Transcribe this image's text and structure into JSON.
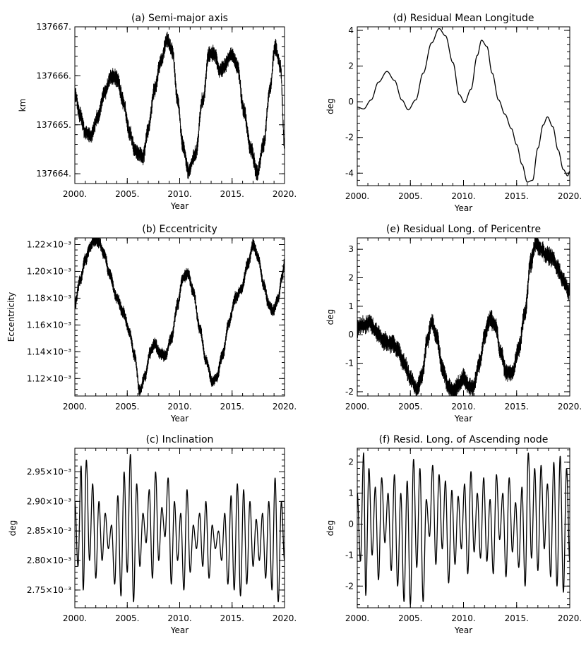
{
  "chart_data": [
    {
      "id": "a",
      "type": "line",
      "title": "(a) Semi-major axis",
      "xlabel": "Year",
      "ylabel": "km",
      "xlim": [
        2000,
        2020
      ],
      "ylim": [
        137663.8,
        137667.0
      ],
      "xticks": [
        2000,
        2005,
        2010,
        2015,
        2020
      ],
      "xtick_labels": [
        "2000.",
        "2005.",
        "2010.",
        "2015.",
        "2020."
      ],
      "yticks": [
        137664,
        137665,
        137666,
        137667
      ],
      "ytick_labels": [
        "137664.",
        "137665.",
        "137666.",
        "137667."
      ],
      "band": 0.14,
      "jitter": 0.05,
      "x": [
        2000.0,
        2000.5,
        2001.0,
        2001.5,
        2002.2,
        2002.8,
        2003.5,
        2004.0,
        2004.6,
        2005.2,
        2005.8,
        2006.5,
        2007.0,
        2007.6,
        2008.2,
        2008.8,
        2009.3,
        2009.8,
        2010.3,
        2010.8,
        2011.5,
        2012.2,
        2012.8,
        2013.3,
        2013.8,
        2014.3,
        2014.9,
        2015.5,
        2016.1,
        2016.8,
        2017.4,
        2018.0,
        2018.6,
        2019.1,
        2019.6,
        2020.0
      ],
      "y": [
        137665.65,
        137665.2,
        137664.85,
        137664.78,
        137665.15,
        137665.65,
        137666.0,
        137665.95,
        137665.5,
        137664.85,
        137664.45,
        137664.35,
        137664.9,
        137665.7,
        137666.3,
        137666.75,
        137666.5,
        137665.5,
        137664.6,
        137664.05,
        137664.4,
        137665.5,
        137666.45,
        137666.45,
        137666.1,
        137666.2,
        137666.45,
        137666.2,
        137665.3,
        137664.5,
        137664.0,
        137664.6,
        137665.7,
        137666.6,
        137666.2,
        137664.6
      ]
    },
    {
      "id": "d",
      "type": "line",
      "title": "(d) Residual Mean Longitude",
      "xlabel": "Year",
      "ylabel": "deg",
      "xlim": [
        2000,
        2020
      ],
      "ylim": [
        -4.7,
        4.2
      ],
      "xticks": [
        2000,
        2005,
        2010,
        2015,
        2020
      ],
      "xtick_labels": [
        "2000.",
        "2005.",
        "2010.",
        "2015.",
        "2020."
      ],
      "yticks": [
        -4,
        -2,
        0,
        2,
        4
      ],
      "ytick_labels": [
        "-4",
        "-2",
        "0",
        "2",
        "4"
      ],
      "band": 0,
      "jitter": 0,
      "x": [
        2000.0,
        2000.6,
        2001.3,
        2002.0,
        2002.8,
        2003.5,
        2004.2,
        2004.8,
        2005.5,
        2006.2,
        2007.0,
        2007.7,
        2008.3,
        2009.0,
        2009.6,
        2010.1,
        2010.7,
        2011.3,
        2011.7,
        2012.2,
        2012.7,
        2013.3,
        2013.9,
        2014.5,
        2015.0,
        2015.5,
        2016.0,
        2016.5,
        2017.0,
        2017.5,
        2017.9,
        2018.4,
        2018.9,
        2019.4,
        2019.8,
        2020.0
      ],
      "y": [
        -0.3,
        -0.4,
        0.1,
        1.1,
        1.7,
        1.2,
        0.1,
        -0.45,
        0.1,
        1.6,
        3.3,
        4.1,
        3.7,
        2.2,
        0.4,
        -0.05,
        0.7,
        2.6,
        3.45,
        3.1,
        1.6,
        0.1,
        -0.7,
        -1.5,
        -2.4,
        -3.5,
        -4.5,
        -4.4,
        -2.6,
        -1.3,
        -0.85,
        -1.4,
        -2.7,
        -3.8,
        -4.15,
        -3.9
      ]
    },
    {
      "id": "b",
      "type": "line",
      "title": "(b) Eccentricity",
      "xlabel": "Year",
      "ylabel": "Eccentricity",
      "xlim": [
        2000,
        2020
      ],
      "ylim": [
        1.107,
        1.225
      ],
      "xticks": [
        2000,
        2005,
        2010,
        2015,
        2020
      ],
      "xtick_labels": [
        "2000.",
        "2005.",
        "2010.",
        "2015.",
        "2020."
      ],
      "yticks": [
        1.12,
        1.14,
        1.16,
        1.18,
        1.2,
        1.22
      ],
      "ytick_labels": [
        "1.12×10⁻³",
        "1.14×10⁻³",
        "1.16×10⁻³",
        "1.18×10⁻³",
        "1.20×10⁻³",
        "1.22×10⁻³"
      ],
      "band": 0.004,
      "jitter": 0.0012,
      "x": [
        2000.0,
        2000.5,
        2001.0,
        2001.5,
        2001.9,
        2002.3,
        2002.8,
        2003.3,
        2004.0,
        2004.6,
        2005.2,
        2005.7,
        2006.2,
        2006.7,
        2007.2,
        2007.6,
        2008.1,
        2008.6,
        2009.2,
        2009.8,
        2010.3,
        2010.8,
        2011.3,
        2011.9,
        2012.5,
        2013.1,
        2013.5,
        2014.1,
        2014.7,
        2015.3,
        2015.9,
        2016.5,
        2017.0,
        2017.5,
        2018.0,
        2018.5,
        2018.9,
        2019.4,
        2019.8,
        2020.0
      ],
      "y": [
        1.176,
        1.193,
        1.209,
        1.219,
        1.223,
        1.222,
        1.213,
        1.198,
        1.18,
        1.17,
        1.155,
        1.137,
        1.111,
        1.122,
        1.14,
        1.146,
        1.139,
        1.137,
        1.15,
        1.175,
        1.195,
        1.198,
        1.185,
        1.158,
        1.134,
        1.118,
        1.12,
        1.138,
        1.162,
        1.18,
        1.187,
        1.205,
        1.22,
        1.21,
        1.19,
        1.175,
        1.17,
        1.18,
        1.197,
        1.207
      ]
    },
    {
      "id": "e",
      "type": "line",
      "title": "(e) Residual Long. of Pericentre",
      "xlabel": "Year",
      "ylabel": "deg",
      "xlim": [
        2000,
        2020
      ],
      "ylim": [
        -2.15,
        3.4
      ],
      "xticks": [
        2000,
        2005,
        2010,
        2015,
        2020
      ],
      "xtick_labels": [
        "2000.",
        "2005.",
        "2010.",
        "2015.",
        "2020."
      ],
      "yticks": [
        -2,
        -1,
        0,
        1,
        2,
        3
      ],
      "ytick_labels": [
        "-2",
        "-1",
        "0",
        "1",
        "2",
        "3"
      ],
      "band": 0.28,
      "jitter": 0.09,
      "x": [
        2000.0,
        2000.6,
        2001.2,
        2001.8,
        2002.5,
        2003.2,
        2003.8,
        2004.4,
        2005.0,
        2005.6,
        2006.1,
        2006.6,
        2007.0,
        2007.5,
        2008.0,
        2008.6,
        2009.1,
        2009.6,
        2010.0,
        2010.5,
        2010.9,
        2011.5,
        2012.0,
        2012.5,
        2013.0,
        2013.5,
        2014.0,
        2014.6,
        2015.2,
        2015.8,
        2016.3,
        2016.8,
        2017.3,
        2017.8,
        2018.4,
        2018.9,
        2019.4,
        2020.0
      ],
      "y": [
        0.25,
        0.35,
        0.4,
        0.1,
        -0.2,
        -0.3,
        -0.5,
        -1.0,
        -1.5,
        -1.9,
        -1.4,
        -0.2,
        0.45,
        -0.1,
        -1.2,
        -1.8,
        -2.0,
        -1.7,
        -1.5,
        -1.8,
        -1.85,
        -1.0,
        0.0,
        0.55,
        0.3,
        -0.6,
        -1.3,
        -1.35,
        -0.5,
        0.8,
        2.5,
        3.2,
        3.0,
        2.8,
        2.7,
        2.3,
        1.9,
        1.5
      ]
    },
    {
      "id": "c",
      "type": "line",
      "title": "(c) Inclination",
      "xlabel": "Year",
      "ylabel": "deg",
      "xlim": [
        2000,
        2020
      ],
      "ylim": [
        2.72,
        2.99
      ],
      "xticks": [
        2000,
        2005,
        2010,
        2015,
        2020
      ],
      "xtick_labels": [
        "2000.",
        "2005.",
        "2010.",
        "2015.",
        "2020."
      ],
      "yticks": [
        2.75,
        2.8,
        2.85,
        2.9,
        2.95
      ],
      "ytick_labels": [
        "2.75×10⁻³",
        "2.80×10⁻³",
        "2.85×10⁻³",
        "2.90×10⁻³",
        "2.95×10⁻³"
      ],
      "band": 0,
      "jitter": 0,
      "x": [
        2000.0,
        2000.3,
        2000.6,
        2000.8,
        2001.1,
        2001.4,
        2001.7,
        2002.0,
        2002.3,
        2002.6,
        2002.9,
        2003.2,
        2003.5,
        2003.8,
        2004.1,
        2004.4,
        2004.7,
        2005.0,
        2005.3,
        2005.6,
        2005.9,
        2006.2,
        2006.5,
        2006.8,
        2007.1,
        2007.4,
        2007.7,
        2008.0,
        2008.3,
        2008.6,
        2008.9,
        2009.2,
        2009.5,
        2009.8,
        2010.1,
        2010.4,
        2010.7,
        2011.0,
        2011.3,
        2011.6,
        2011.9,
        2012.2,
        2012.5,
        2012.8,
        2013.1,
        2013.4,
        2013.7,
        2014.0,
        2014.3,
        2014.6,
        2014.9,
        2015.2,
        2015.5,
        2015.8,
        2016.1,
        2016.4,
        2016.7,
        2017.0,
        2017.3,
        2017.6,
        2017.9,
        2018.2,
        2018.5,
        2018.8,
        2019.1,
        2019.4,
        2019.7,
        2020.0
      ],
      "y": [
        2.9,
        2.79,
        2.96,
        2.75,
        2.97,
        2.8,
        2.93,
        2.77,
        2.9,
        2.8,
        2.88,
        2.82,
        2.86,
        2.76,
        2.91,
        2.74,
        2.95,
        2.78,
        2.98,
        2.73,
        2.93,
        2.79,
        2.88,
        2.83,
        2.92,
        2.77,
        2.95,
        2.8,
        2.89,
        2.84,
        2.94,
        2.76,
        2.9,
        2.8,
        2.88,
        2.75,
        2.92,
        2.78,
        2.86,
        2.82,
        2.88,
        2.79,
        2.9,
        2.77,
        2.86,
        2.82,
        2.85,
        2.8,
        2.88,
        2.76,
        2.91,
        2.75,
        2.93,
        2.74,
        2.92,
        2.76,
        2.9,
        2.79,
        2.87,
        2.8,
        2.88,
        2.77,
        2.9,
        2.75,
        2.94,
        2.73,
        2.9,
        2.8
      ]
    },
    {
      "id": "f",
      "type": "line",
      "title": "(f) Resid. Long. of Ascending node",
      "xlabel": "Year",
      "ylabel": "deg",
      "xlim": [
        2000,
        2020
      ],
      "ylim": [
        -2.7,
        2.45
      ],
      "xticks": [
        2000,
        2005,
        2010,
        2015,
        2020
      ],
      "xtick_labels": [
        "2000.",
        "2005.",
        "2010.",
        "2015.",
        "2020."
      ],
      "yticks": [
        -2,
        -1,
        0,
        1,
        2
      ],
      "ytick_labels": [
        "-2",
        "-1",
        "0",
        "1",
        "2"
      ],
      "band": 0,
      "jitter": 0,
      "x": [
        2000.0,
        2000.3,
        2000.6,
        2000.8,
        2001.1,
        2001.4,
        2001.7,
        2002.0,
        2002.3,
        2002.6,
        2002.9,
        2003.2,
        2003.5,
        2003.8,
        2004.1,
        2004.4,
        2004.7,
        2005.0,
        2005.3,
        2005.6,
        2005.9,
        2006.2,
        2006.5,
        2006.8,
        2007.1,
        2007.4,
        2007.7,
        2008.0,
        2008.3,
        2008.6,
        2008.9,
        2009.2,
        2009.5,
        2009.8,
        2010.1,
        2010.4,
        2010.7,
        2011.0,
        2011.3,
        2011.6,
        2011.9,
        2012.2,
        2012.5,
        2012.8,
        2013.1,
        2013.4,
        2013.7,
        2014.0,
        2014.3,
        2014.6,
        2014.9,
        2015.2,
        2015.5,
        2015.8,
        2016.1,
        2016.4,
        2016.7,
        2017.0,
        2017.3,
        2017.6,
        2017.9,
        2018.2,
        2018.5,
        2018.8,
        2019.1,
        2019.4,
        2019.7,
        2020.0
      ],
      "y": [
        1.0,
        -1.2,
        2.3,
        -2.3,
        1.8,
        -1.0,
        1.2,
        -1.8,
        1.5,
        -0.6,
        1.0,
        -1.5,
        1.6,
        -2.0,
        1.0,
        -2.5,
        1.4,
        -2.6,
        2.1,
        -1.4,
        1.8,
        -2.5,
        0.8,
        -0.4,
        1.9,
        -1.3,
        1.6,
        -0.8,
        1.4,
        -1.9,
        1.1,
        -1.3,
        0.9,
        -0.8,
        1.3,
        -1.6,
        1.7,
        -0.9,
        1.0,
        -1.1,
        1.5,
        -1.2,
        0.8,
        -1.6,
        1.6,
        -0.5,
        1.0,
        -1.7,
        1.5,
        -0.9,
        0.7,
        -1.4,
        1.2,
        -2.0,
        2.3,
        -1.1,
        1.8,
        -1.5,
        1.9,
        -0.8,
        1.3,
        -1.7,
        2.0,
        -2.0,
        2.2,
        -2.2,
        1.8,
        -1.2
      ]
    }
  ]
}
